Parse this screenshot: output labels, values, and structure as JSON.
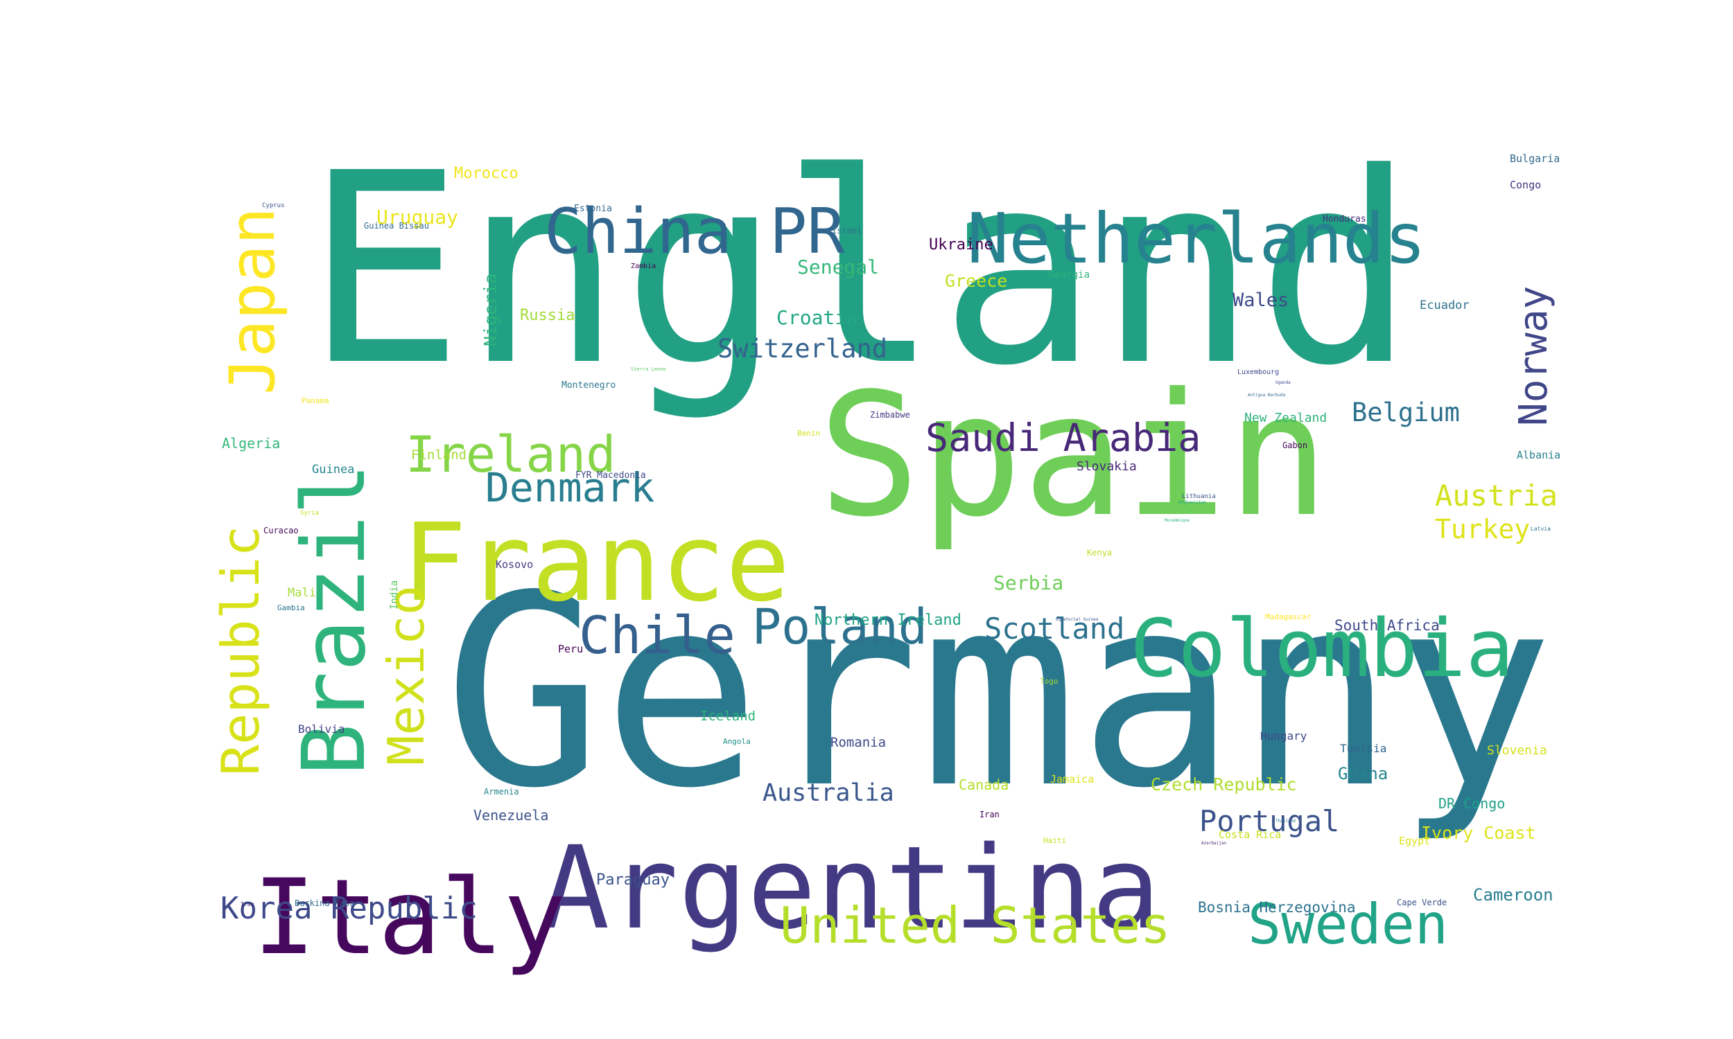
{
  "words": [
    {
      "text": "England",
      "color": "#21a083"
    },
    {
      "text": "Germany",
      "color": "#2a788e"
    },
    {
      "text": "Spain",
      "color": "#6ece58"
    },
    {
      "text": "Argentina",
      "color": "#443a83"
    },
    {
      "text": "France",
      "color": "#c2df23"
    },
    {
      "text": "Italy",
      "color": "#46085c"
    },
    {
      "text": "Brazil",
      "color": "#2eb37c"
    },
    {
      "text": "Colombia",
      "color": "#2ab07f"
    },
    {
      "text": "Netherlands",
      "color": "#26828e"
    },
    {
      "text": "China PR",
      "color": "#31668e"
    },
    {
      "text": "Japan",
      "color": "#fde725"
    },
    {
      "text": "Republic",
      "color": "#d8e219"
    },
    {
      "text": "Mexico",
      "color": "#d0e11c"
    },
    {
      "text": "United States",
      "color": "#b5de2b"
    },
    {
      "text": "Sweden",
      "color": "#20a386"
    },
    {
      "text": "Poland",
      "color": "#2c728e"
    },
    {
      "text": "Chile",
      "color": "#355f8d"
    },
    {
      "text": "Ireland",
      "color": "#86d549"
    },
    {
      "text": "Saudi Arabia",
      "color": "#482878"
    },
    {
      "text": "Denmark",
      "color": "#287d8e"
    },
    {
      "text": "Norway",
      "color": "#404688"
    },
    {
      "text": "Korea Republic",
      "color": "#3e4989"
    },
    {
      "text": "Portugal",
      "color": "#3b528b"
    },
    {
      "text": "Scotland",
      "color": "#2c728e"
    },
    {
      "text": "Switzerland",
      "color": "#33638d"
    },
    {
      "text": "Belgium",
      "color": "#2d708e"
    },
    {
      "text": "Austria",
      "color": "#d2e21b"
    },
    {
      "text": "Turkey",
      "color": "#dfe318"
    },
    {
      "text": "Australia",
      "color": "#39568c"
    },
    {
      "text": "Croatia",
      "color": "#22a785"
    },
    {
      "text": "Senegal",
      "color": "#35b779"
    },
    {
      "text": "Serbia",
      "color": "#6ece58"
    },
    {
      "text": "Uruguay",
      "color": "#eae51a"
    },
    {
      "text": "Wales",
      "color": "#3e4989"
    },
    {
      "text": "Greece",
      "color": "#c2df23"
    },
    {
      "text": "Ukraine",
      "color": "#440154"
    },
    {
      "text": "Russia",
      "color": "#a2da37"
    },
    {
      "text": "Nigeria",
      "color": "#2eb37c"
    },
    {
      "text": "Czech Republic",
      "color": "#b0dd2f"
    },
    {
      "text": "Northern Ireland",
      "color": "#20a386"
    },
    {
      "text": "Ivory Coast",
      "color": "#dde318"
    },
    {
      "text": "Cameroon",
      "color": "#287d8e"
    },
    {
      "text": "Paraguay",
      "color": "#3b528b"
    },
    {
      "text": "Ghana",
      "color": "#24868e"
    },
    {
      "text": "Morocco",
      "color": "#f1e51d"
    },
    {
      "text": "Bosnia Herzegovina",
      "color": "#2c728e"
    },
    {
      "text": "Venezuela",
      "color": "#3b528b"
    },
    {
      "text": "South Africa",
      "color": "#3e4989"
    },
    {
      "text": "DR Congo",
      "color": "#1fa188"
    },
    {
      "text": "Slovenia",
      "color": "#d5e21a"
    },
    {
      "text": "Canada",
      "color": "#b5de2b"
    },
    {
      "text": "Romania",
      "color": "#3e4989"
    },
    {
      "text": "Iceland",
      "color": "#2eb37c"
    },
    {
      "text": "Algeria",
      "color": "#35b779"
    },
    {
      "text": "Finland",
      "color": "#a5db36"
    },
    {
      "text": "Slovakia",
      "color": "#482878"
    },
    {
      "text": "Ecuador",
      "color": "#2c728e"
    },
    {
      "text": "New Zealand",
      "color": "#2eb37c"
    },
    {
      "text": "Guinea",
      "color": "#25858e"
    },
    {
      "text": "Mali",
      "color": "#a5db36"
    },
    {
      "text": "Bolivia",
      "color": "#414487"
    },
    {
      "text": "Hungary",
      "color": "#3e4989"
    },
    {
      "text": "Tunisia",
      "color": "#31668e"
    },
    {
      "text": "Kosovo",
      "color": "#443983"
    },
    {
      "text": "Albania",
      "color": "#27808e"
    },
    {
      "text": "Jamaica",
      "color": "#dfe318"
    },
    {
      "text": "Costa Rica",
      "color": "#c8e020"
    },
    {
      "text": "Bulgaria",
      "color": "#31688e"
    },
    {
      "text": "Congo",
      "color": "#46327e"
    },
    {
      "text": "Peru",
      "color": "#440154"
    },
    {
      "text": "India",
      "color": "#5cc863"
    },
    {
      "text": "Egypt",
      "color": "#dfe318"
    },
    {
      "text": "Honduras",
      "color": "#472c7a"
    },
    {
      "text": "Georgia",
      "color": "#2eb37c"
    },
    {
      "text": "Estonia",
      "color": "#31688e"
    },
    {
      "text": "Armenia",
      "color": "#25858e"
    },
    {
      "text": "Iran",
      "color": "#440154"
    },
    {
      "text": "Zimbabwe",
      "color": "#433e85"
    },
    {
      "text": "Montenegro",
      "color": "#2a788e"
    },
    {
      "text": "FYR Macedonia",
      "color": "#3e4989"
    },
    {
      "text": "Luxembourg",
      "color": "#404688"
    },
    {
      "text": "Lithuania",
      "color": "#3b528b"
    },
    {
      "text": "Burkina Faso",
      "color": "#2e6e8e"
    },
    {
      "text": "Cape Verde",
      "color": "#3b528b"
    },
    {
      "text": "Guinea Bissau",
      "color": "#30698e"
    },
    {
      "text": "Angola",
      "color": "#21918c"
    },
    {
      "text": "Gabon",
      "color": "#46085c"
    },
    {
      "text": "Israel",
      "color": "#2c728e"
    },
    {
      "text": "Curacao",
      "color": "#46085c"
    },
    {
      "text": "Kenya",
      "color": "#bddf26"
    },
    {
      "text": "Haiti",
      "color": "#c8e020"
    },
    {
      "text": "Togo",
      "color": "#a2da37"
    },
    {
      "text": "Gambia",
      "color": "#2a788e"
    },
    {
      "text": "Panama",
      "color": "#f1e51d"
    },
    {
      "text": "Benin",
      "color": "#d2e21b"
    },
    {
      "text": "Madagascar",
      "color": "#fde725"
    },
    {
      "text": "Zambia",
      "color": "#440154"
    },
    {
      "text": "Cyprus",
      "color": "#3b528b"
    },
    {
      "text": "Latvia",
      "color": "#2c728e"
    },
    {
      "text": "Syria",
      "color": "#c2df23"
    },
    {
      "text": "Sierra Leone",
      "color": "#5ec962"
    },
    {
      "text": "Iraq",
      "color": "#482878"
    },
    {
      "text": "Afghanistan",
      "color": "#20a386"
    },
    {
      "text": "Azerbaijan",
      "color": "#482878"
    },
    {
      "text": "Uganda",
      "color": "#3e4989"
    },
    {
      "text": "Thailand",
      "color": "#2c728e"
    },
    {
      "text": "Mozambique",
      "color": "#2eb37c"
    },
    {
      "text": "Equatorial Guinea",
      "color": "#3b528b"
    },
    {
      "text": "Antigua Barbuda",
      "color": "#31688e"
    }
  ]
}
